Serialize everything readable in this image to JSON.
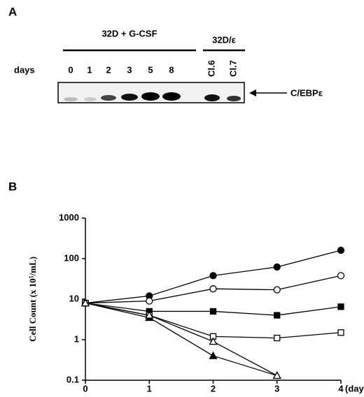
{
  "panel_a": {
    "label": "A",
    "group_1": "32D + G-CSF",
    "group_2": "32D/ε",
    "row_label": "days",
    "lanes": [
      "0",
      "1",
      "2",
      "3",
      "5",
      "8"
    ],
    "clones": [
      "Cl.6",
      "Cl.7"
    ],
    "band_label": "C/EBPε"
  },
  "chart_data": {
    "type": "line",
    "panel_label": "B",
    "x_label": "(days)",
    "y_label": "Cell Count (x 10⁵/mL)",
    "x": [
      0,
      1,
      2,
      3,
      4
    ],
    "xlim": [
      0,
      4
    ],
    "xticks": [
      0,
      1,
      2,
      3,
      4
    ],
    "ylim": [
      0.1,
      1000
    ],
    "yticks": [
      1000,
      100,
      10,
      1,
      0.1
    ],
    "log_y": true,
    "series": [
      {
        "color": "#000000",
        "marker": "circle",
        "filled": true,
        "values": [
          8,
          12,
          38,
          62,
          160
        ]
      },
      {
        "color": "#000000",
        "marker": "circle",
        "filled": false,
        "values": [
          8,
          9,
          18,
          17,
          38
        ]
      },
      {
        "color": "#000000",
        "marker": "square",
        "filled": true,
        "values": [
          8,
          5,
          5,
          4,
          6.5
        ]
      },
      {
        "color": "#000000",
        "marker": "square",
        "filled": false,
        "values": [
          8,
          4,
          1.2,
          1.1,
          1.5
        ]
      },
      {
        "color": "#000000",
        "marker": "triangle",
        "filled": true,
        "values": [
          8,
          3.5,
          0.4,
          0.13,
          null
        ]
      },
      {
        "color": "#000000",
        "marker": "triangle",
        "filled": false,
        "values": [
          8,
          4,
          0.9,
          0.13,
          null
        ]
      }
    ]
  }
}
